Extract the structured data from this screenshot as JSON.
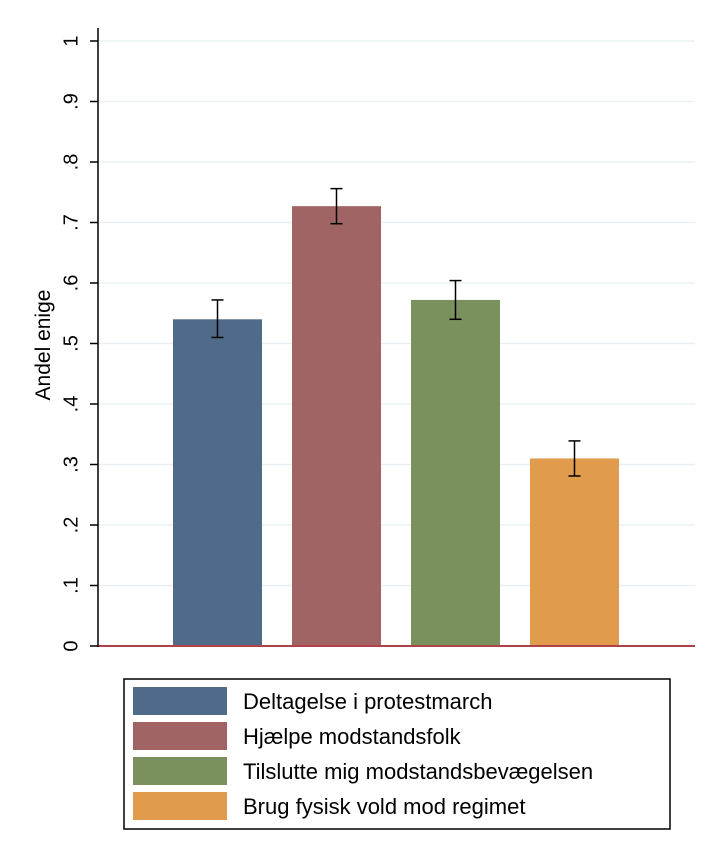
{
  "chart_data": {
    "type": "bar",
    "title": "",
    "xlabel": "",
    "ylabel": "Andel enige",
    "ylim": [
      0,
      1
    ],
    "yticks": [
      0,
      0.1,
      0.2,
      0.3,
      0.4,
      0.5,
      0.6,
      0.7,
      0.8,
      0.9,
      1
    ],
    "ytick_labels": [
      "0",
      ".1",
      ".2",
      ".3",
      ".4",
      ".5",
      ".6",
      ".7",
      ".8",
      ".9",
      "1"
    ],
    "grid": true,
    "legend_position": "bottom",
    "series": [
      {
        "name": "Deltagelse i protestmarch",
        "value": 0.54,
        "ci": [
          0.51,
          0.572
        ],
        "color": "#4f6b89"
      },
      {
        "name": "Hjælpe modstandsfolk",
        "value": 0.727,
        "ci": [
          0.698,
          0.756
        ],
        "color": "#a06464"
      },
      {
        "name": "Tilslutte mig modstandsbevægelsen",
        "value": 0.572,
        "ci": [
          0.54,
          0.604
        ],
        "color": "#7a915e"
      },
      {
        "name": "Brug fysisk vold mod regimet",
        "value": 0.31,
        "ci": [
          0.281,
          0.339
        ],
        "color": "#e09c4c"
      }
    ]
  }
}
